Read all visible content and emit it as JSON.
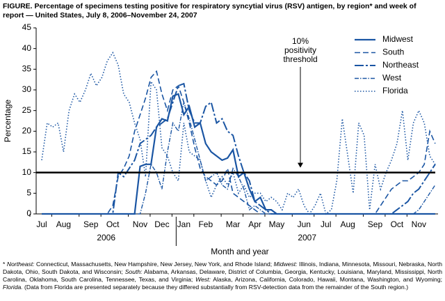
{
  "chart_data": {
    "type": "line",
    "title": "FIGURE. Percentage of specimens testing positive for respiratory syncytial virus (RSV) antigen, by region* and week of report — United States, July 8, 2006–November 24, 2007",
    "ylabel": "Percentage",
    "xlabel": "Month and year",
    "year_labels": [
      "2006",
      "2007"
    ],
    "categories": [
      "Jul",
      null,
      null,
      null,
      "Aug",
      null,
      null,
      null,
      null,
      "Sep",
      null,
      null,
      null,
      "Oct",
      null,
      null,
      null,
      null,
      "Nov",
      null,
      null,
      null,
      "Dec",
      null,
      null,
      null,
      "Jan",
      null,
      null,
      null,
      "Feb",
      null,
      null,
      null,
      null,
      "Mar",
      null,
      null,
      null,
      "Apr",
      null,
      null,
      null,
      "May",
      null,
      null,
      null,
      null,
      "Jun",
      null,
      null,
      null,
      "Jul",
      null,
      null,
      null,
      "Aug",
      null,
      null,
      null,
      null,
      "Sep",
      null,
      null,
      null,
      "Oct",
      null,
      null,
      null,
      "Nov",
      null,
      null,
      null
    ],
    "ylim": [
      0,
      45
    ],
    "yticks": [
      0,
      5,
      10,
      15,
      20,
      25,
      30,
      35,
      40,
      45
    ],
    "threshold": 10,
    "annotation": [
      "10%",
      "positivity",
      "threshold"
    ],
    "legend": "upper right",
    "series": [
      {
        "name": "Midwest",
        "color": "#1a55a3",
        "dash": "solid",
        "values": [
          0,
          0,
          0,
          0,
          0,
          0,
          0,
          0,
          0,
          0,
          0,
          0,
          0,
          0,
          0,
          0,
          0,
          0,
          11.5,
          12,
          12,
          21,
          23,
          22.5,
          28.5,
          29,
          24,
          26,
          21,
          22,
          17,
          15,
          14,
          13,
          13.5,
          15.5,
          9,
          10,
          6,
          3,
          4,
          1,
          1,
          0,
          0,
          0,
          0,
          0,
          0,
          0,
          0,
          0,
          0,
          0,
          0,
          0,
          0,
          0,
          0,
          0,
          0,
          0,
          0,
          0,
          0,
          0,
          0,
          0,
          0,
          0,
          0,
          0,
          0
        ]
      },
      {
        "name": "South",
        "color": "#1a55a3",
        "dash": "dashed",
        "values": [
          0,
          0,
          0,
          0,
          0,
          0,
          0,
          0,
          0,
          0,
          0,
          0,
          0,
          2,
          9,
          11,
          14,
          20,
          24,
          28,
          33,
          34.5,
          29,
          25,
          30,
          31,
          27,
          22,
          16,
          11,
          9,
          8,
          7,
          8,
          11,
          5,
          4,
          3,
          2,
          1,
          0,
          0,
          0,
          0,
          0,
          0,
          0,
          0,
          0,
          0,
          0,
          0,
          0,
          0,
          0,
          0,
          0,
          0,
          0,
          0,
          0,
          0,
          2,
          4,
          6,
          7,
          8,
          8,
          9,
          10,
          12,
          20,
          17
        ]
      },
      {
        "name": "Northeast",
        "color": "#1a55a3",
        "dash": "longdash",
        "values": [
          0,
          0,
          0,
          0,
          0,
          0,
          0,
          0,
          0,
          0,
          0,
          0,
          0,
          0,
          10,
          9,
          11,
          13,
          17,
          18,
          19,
          21,
          22,
          23,
          27,
          31,
          31.5,
          25,
          22,
          22,
          26,
          27,
          22,
          23,
          20,
          19,
          14,
          10,
          8,
          3,
          2,
          1,
          0,
          0,
          0,
          0,
          0,
          0,
          0,
          0,
          0,
          0,
          0,
          0,
          0,
          0,
          0,
          0,
          0,
          0,
          0,
          0,
          0,
          0,
          0,
          1,
          2,
          3,
          5,
          6,
          8,
          10,
          12
        ]
      },
      {
        "name": "West",
        "color": "#1a55a3",
        "dash": "dashdot",
        "values": [
          0,
          0,
          0,
          0,
          0,
          0,
          0,
          0,
          0,
          0,
          0,
          0,
          0,
          0,
          0,
          0,
          0,
          0,
          0,
          5,
          12,
          10,
          6,
          15,
          22,
          20,
          27,
          23,
          18,
          13,
          8,
          9,
          10,
          7,
          6,
          11,
          9,
          6,
          1,
          2,
          1,
          0,
          0,
          0,
          0,
          0,
          0,
          0,
          0,
          0,
          0,
          0,
          0,
          0,
          0,
          0,
          0,
          0,
          0,
          0,
          0,
          0,
          0,
          0,
          0,
          0,
          0,
          0,
          0,
          1,
          3,
          5,
          7
        ]
      },
      {
        "name": "Florida",
        "color": "#1a55a3",
        "dash": "dotted",
        "values": [
          13,
          22,
          21,
          22,
          15,
          25,
          29,
          27,
          30,
          34,
          31,
          33,
          37,
          39,
          36,
          29,
          27,
          22,
          18,
          9,
          32,
          30,
          16,
          14,
          10,
          8,
          22,
          15,
          14,
          13,
          8,
          4,
          7,
          9,
          7,
          10,
          5,
          7,
          4,
          5,
          5,
          3,
          4,
          3,
          1,
          5,
          4,
          6,
          2,
          0,
          2,
          5,
          0,
          1,
          8,
          23,
          14,
          5,
          22,
          19,
          1,
          12,
          6,
          10,
          13,
          17,
          25,
          13,
          22,
          25,
          22,
          14,
          12
        ]
      }
    ],
    "footnote": [
      {
        "text": "* ",
        "italic": false
      },
      {
        "text": "Northeast:",
        "italic": true
      },
      {
        "text": " Connecticut, Massachusetts, New Hampshire, New Jersey, New York, and Rhode Island; ",
        "italic": false
      },
      {
        "text": "Midwest:",
        "italic": true
      },
      {
        "text": " Illinois, Indiana, Minnesota, Missouri, Nebraska, North Dakota, Ohio, South Dakota, and Wisconsin; ",
        "italic": false
      },
      {
        "text": "South:",
        "italic": true
      },
      {
        "text": " Alabama, Arkansas, Delaware, District of Columbia, Georgia, Kentucky, Louisiana, Maryland, Mississippi, North Carolina, Oklahoma, South Carolina, Tennessee, Texas, and Virginia; ",
        "italic": false
      },
      {
        "text": "West:",
        "italic": true
      },
      {
        "text": " Alaska, Arizona, California, Colorado, Hawaii, Montana, Washington, and Wyoming; ",
        "italic": false
      },
      {
        "text": "Florida.",
        "italic": true
      },
      {
        "text": " (Data from Florida are presented separately because they differed substantially from RSV-detection data from the remainder of the South region.)",
        "italic": false
      }
    ]
  }
}
